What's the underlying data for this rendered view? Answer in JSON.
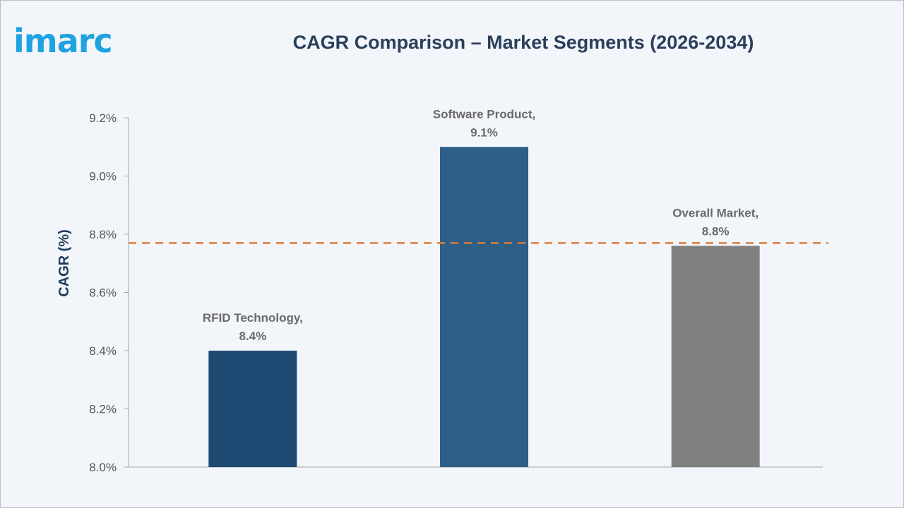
{
  "logo": {
    "text": "imarc",
    "color": "#1fa3e0"
  },
  "chart_data": {
    "type": "bar",
    "title": "CAGR Comparison – Market Segments (2026-2034)",
    "ylabel": "CAGR (%)",
    "xlabel": "",
    "ylim": [
      8.0,
      9.2
    ],
    "yticks": [
      "8.0%",
      "8.2%",
      "8.4%",
      "8.6%",
      "8.8%",
      "9.0%",
      "9.2%"
    ],
    "ytick_values": [
      8.0,
      8.2,
      8.4,
      8.6,
      8.8,
      9.0,
      9.2
    ],
    "categories": [
      "RFID Technology",
      "Software Product",
      "Overall Market"
    ],
    "values": [
      8.4,
      9.1,
      8.76
    ],
    "data_labels": [
      [
        "RFID Technology,",
        "8.4%"
      ],
      [
        "Software Product,",
        "9.1%"
      ],
      [
        "Overall Market,",
        "8.8%"
      ]
    ],
    "colors": [
      "#1f4a73",
      "#2d5f87",
      "#808080"
    ],
    "reference_line": {
      "value": 8.77,
      "color": "#e07b39",
      "style": "dashed"
    },
    "grid": false,
    "legend": "none"
  }
}
